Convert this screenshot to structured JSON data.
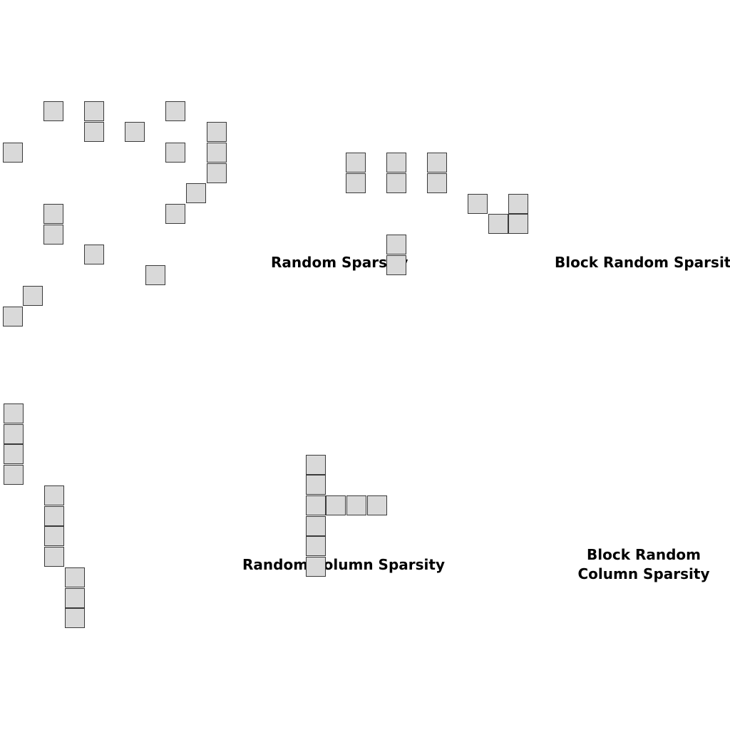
{
  "panels": [
    {
      "key": "random_sparsity",
      "label": "Random Sparsity"
    },
    {
      "key": "block_random_sparsity",
      "label": "Block Random Sparsity"
    },
    {
      "key": "random_column_sparsity",
      "label": "Random Column Sparsity"
    },
    {
      "key": "block_random_column_sparsity",
      "label_line1": "Block Random",
      "label_line2": "Column Sparsity"
    }
  ],
  "colors": {
    "cell_fill": "#d9d9d9",
    "cell_border": "#3a3a3a",
    "text": "#000000",
    "background": "#ffffff"
  }
}
